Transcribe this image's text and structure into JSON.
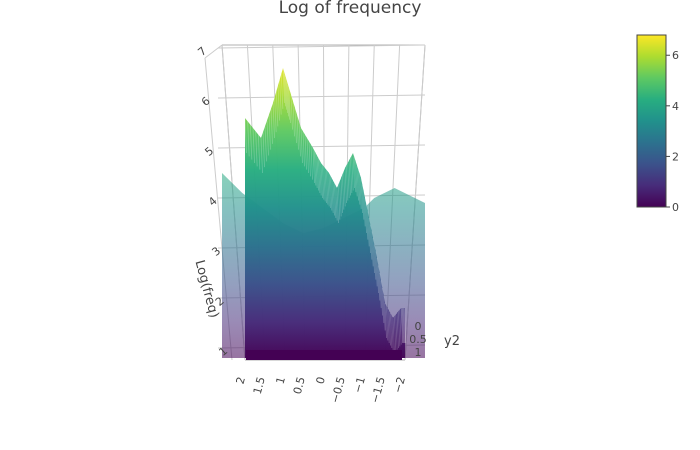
{
  "chart_data": {
    "type": "surface",
    "title": "Log of frequency",
    "axes": {
      "x": {
        "title": "",
        "ticks": [
          "2",
          "1.5",
          "1",
          "0.5",
          "0",
          "−0.5",
          "−1",
          "−1.5",
          "−2"
        ],
        "tick_values": [
          2,
          1.5,
          1,
          0.5,
          0,
          -0.5,
          -1,
          -1.5,
          -2
        ],
        "range": [
          2,
          -2
        ]
      },
      "y": {
        "title": "y2",
        "ticks": [
          "0",
          "0.5",
          "1"
        ],
        "tick_values": [
          0,
          0.5,
          1
        ],
        "range": [
          0,
          1
        ]
      },
      "z": {
        "title": "Log(freq)",
        "ticks": [
          "1",
          "2",
          "3",
          "4",
          "5",
          "6",
          "7"
        ],
        "tick_values": [
          1,
          2,
          3,
          4,
          5,
          6,
          7
        ],
        "range": [
          0.8,
          7
        ]
      }
    },
    "colorscale": {
      "name": "viridis",
      "stops": [
        "#440154",
        "#472c7a",
        "#3b528b",
        "#2c728e",
        "#21918c",
        "#28ae80",
        "#5ec962",
        "#addc30",
        "#fde725"
      ],
      "ticks": [
        "0",
        "2",
        "4",
        "6"
      ],
      "tick_values": [
        0,
        2,
        4,
        6
      ],
      "range": [
        0,
        6.8
      ]
    },
    "profile_front": {
      "x": [
        2.0,
        1.6,
        1.3,
        1.05,
        0.9,
        0.6,
        0.3,
        0.1,
        -0.1,
        -0.3,
        -0.5,
        -0.7,
        -0.9,
        -1.1,
        -1.3,
        -1.5,
        -1.7,
        -1.9,
        -2.0
      ],
      "z": [
        5.6,
        5.2,
        5.9,
        6.6,
        6.2,
        5.4,
        5.0,
        4.7,
        4.5,
        4.2,
        4.6,
        4.9,
        4.4,
        3.6,
        2.8,
        1.9,
        1.6,
        1.8,
        1.8
      ]
    },
    "profile_back": {
      "x": [
        2.0,
        1.6,
        1.2,
        0.8,
        0.4,
        0.0,
        -0.4,
        -0.8,
        -1.0,
        -1.2,
        -1.4,
        -1.6,
        -1.8,
        -2.0
      ],
      "z": [
        5.3,
        4.9,
        4.6,
        4.3,
        4.1,
        4.2,
        4.4,
        4.6,
        4.8,
        4.9,
        5.0,
        4.9,
        4.8,
        4.7
      ]
    },
    "grid": true
  }
}
